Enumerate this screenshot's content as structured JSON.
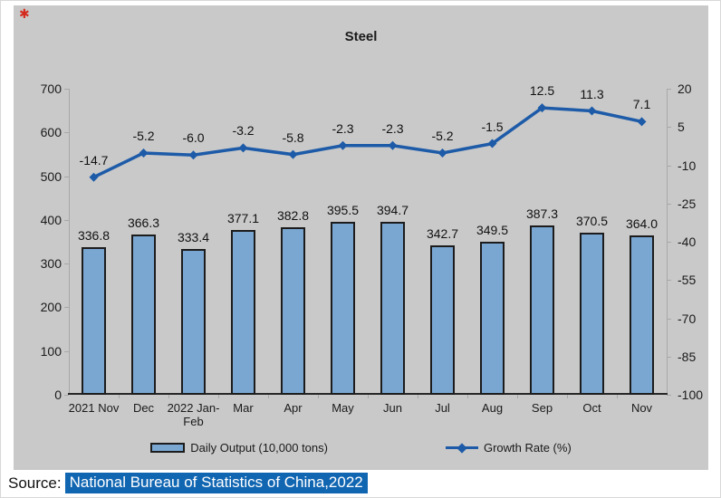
{
  "corner_marker": "✱",
  "chart_data": {
    "type": "bar+line",
    "title": "Steel",
    "categories": [
      "2021 Nov",
      "Dec",
      "2022 Jan-Feb",
      "Mar",
      "Apr",
      "May",
      "Jun",
      "Jul",
      "Aug",
      "Sep",
      "Oct",
      "Nov"
    ],
    "series": [
      {
        "name": "Daily Output (10,000 tons)",
        "type": "bar",
        "axis": "left",
        "color": "#7aa6d2",
        "border_color": "#1c1c1c",
        "values": [
          336.8,
          366.3,
          333.4,
          377.1,
          382.8,
          395.5,
          394.7,
          342.7,
          349.5,
          387.3,
          370.5,
          364.0
        ]
      },
      {
        "name": "Growth Rate (%)",
        "type": "line",
        "axis": "right",
        "color": "#1d5ba8",
        "marker": "diamond",
        "values": [
          -14.7,
          -5.2,
          -6.0,
          -3.2,
          -5.8,
          -2.3,
          -2.3,
          -5.2,
          -1.5,
          12.5,
          11.3,
          7.1
        ]
      }
    ],
    "left_axis": {
      "min": 0,
      "max": 700,
      "ticks": [
        700,
        600,
        500,
        400,
        300,
        200,
        100,
        0
      ]
    },
    "right_axis": {
      "min": -100,
      "max": 20,
      "ticks": [
        20,
        5,
        -10,
        -25,
        -40,
        -55,
        -70,
        -85,
        -100
      ]
    },
    "grid": false,
    "legend_position": "bottom",
    "data_labels": true
  },
  "legend": {
    "items": [
      {
        "label": "Daily Output (10,000 tons)",
        "swatch": "bar"
      },
      {
        "label": "Growth Rate (%)",
        "swatch": "line-diamond"
      }
    ]
  },
  "source": {
    "label": "Source:",
    "text": "National Bureau of Statistics of China,2022",
    "highlight_color": "#1166b2"
  }
}
